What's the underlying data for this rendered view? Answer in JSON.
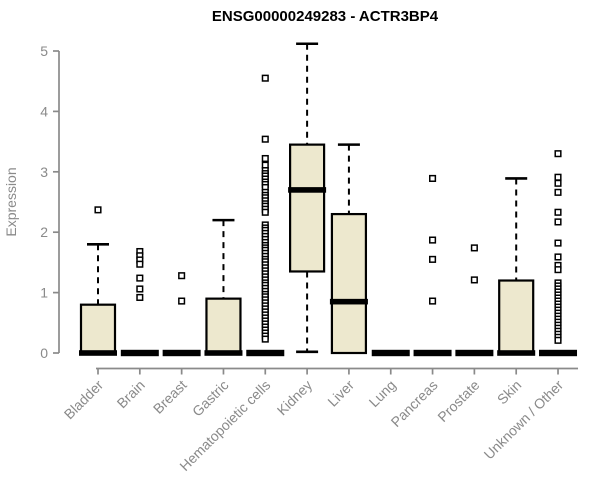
{
  "chart_data": {
    "type": "boxplot",
    "title": "ENSG00000249283 - ACTR3BP4",
    "ylabel": "Expression",
    "xlabel": "",
    "ylim": [
      0,
      5
    ],
    "yticks": [
      0,
      1,
      2,
      3,
      4,
      5
    ],
    "grid": false,
    "legend": null,
    "colors": {
      "box_fill": "#ede8ce",
      "box_border": "#000000",
      "median": "#000000",
      "whisker": "#000000",
      "outlier": "#000000",
      "axis": "#8a8a8a",
      "tick_label": "#8a8a8a",
      "title": "#000000",
      "background": "#ffffff"
    },
    "categories": [
      "Bladder",
      "Brain",
      "Breast",
      "Gastric",
      "Hematopoietic cells",
      "Kidney",
      "Liver",
      "Lung",
      "Pancreas",
      "Prostate",
      "Skin",
      "Unknown / Other"
    ],
    "series": [
      {
        "category": "Bladder",
        "q1": 0,
        "median": 0,
        "q3": 0.8,
        "whisker_low": 0,
        "whisker_high": 1.8,
        "outliers": [
          2.37
        ]
      },
      {
        "category": "Brain",
        "q1": 0,
        "median": 0,
        "q3": 0,
        "whisker_low": 0,
        "whisker_high": 0,
        "outliers": [
          1.68,
          1.61,
          1.54,
          1.47,
          1.24,
          1.06,
          0.92
        ]
      },
      {
        "category": "Breast",
        "q1": 0,
        "median": 0,
        "q3": 0,
        "whisker_low": 0,
        "whisker_high": 0,
        "outliers": [
          1.28,
          0.86
        ]
      },
      {
        "category": "Gastric",
        "q1": 0,
        "median": 0,
        "q3": 0.9,
        "whisker_low": 0,
        "whisker_high": 2.2,
        "outliers": []
      },
      {
        "category": "Hematopoietic cells",
        "q1": 0,
        "median": 0,
        "q3": 0,
        "whisker_low": 0,
        "whisker_high": 0,
        "outliers": [
          4.55,
          3.54,
          3.22,
          3.11,
          3.02,
          2.97,
          2.93,
          2.88,
          2.83,
          2.79,
          2.74,
          2.66,
          2.61,
          2.57,
          2.52,
          2.47,
          2.43,
          2.38,
          2.33,
          2.12,
          2.07,
          2.03,
          1.98,
          1.93,
          1.88,
          1.83,
          1.78,
          1.74,
          1.7,
          1.65,
          1.6,
          1.55,
          1.51,
          1.46,
          1.41,
          1.36,
          1.31,
          1.26,
          1.21,
          1.16,
          1.12,
          1.07,
          1.02,
          0.97,
          0.93,
          0.88,
          0.83,
          0.78,
          0.73,
          0.68,
          0.63,
          0.58,
          0.53,
          0.48,
          0.43,
          0.38,
          0.33,
          0.28,
          0.23
        ]
      },
      {
        "category": "Kidney",
        "q1": 1.35,
        "median": 2.7,
        "q3": 3.45,
        "whisker_low": 0.02,
        "whisker_high": 5.12,
        "outliers": []
      },
      {
        "category": "Liver",
        "q1": 0,
        "median": 0.85,
        "q3": 2.3,
        "whisker_low": 0,
        "whisker_high": 3.45,
        "outliers": []
      },
      {
        "category": "Lung",
        "q1": 0,
        "median": 0,
        "q3": 0,
        "whisker_low": 0,
        "whisker_high": 0,
        "outliers": []
      },
      {
        "category": "Pancreas",
        "q1": 0,
        "median": 0,
        "q3": 0,
        "whisker_low": 0,
        "whisker_high": 0,
        "outliers": [
          2.89,
          1.87,
          1.55,
          0.86
        ]
      },
      {
        "category": "Prostate",
        "q1": 0,
        "median": 0,
        "q3": 0,
        "whisker_low": 0,
        "whisker_high": 0,
        "outliers": [
          1.74,
          1.21
        ]
      },
      {
        "category": "Skin",
        "q1": 0,
        "median": 0,
        "q3": 1.2,
        "whisker_low": 0,
        "whisker_high": 2.89,
        "outliers": []
      },
      {
        "category": "Unknown / Other",
        "q1": 0,
        "median": 0,
        "q3": 0,
        "whisker_low": 0,
        "whisker_high": 0,
        "outliers": [
          3.3,
          2.91,
          2.81,
          2.66,
          2.33,
          2.17,
          1.82,
          1.59,
          1.45,
          1.38,
          1.16,
          1.11,
          1.06,
          1.01,
          0.96,
          0.91,
          0.86,
          0.81,
          0.76,
          0.71,
          0.66,
          0.61,
          0.56,
          0.51,
          0.46,
          0.41,
          0.36,
          0.31,
          0.26,
          0.21
        ]
      }
    ]
  }
}
